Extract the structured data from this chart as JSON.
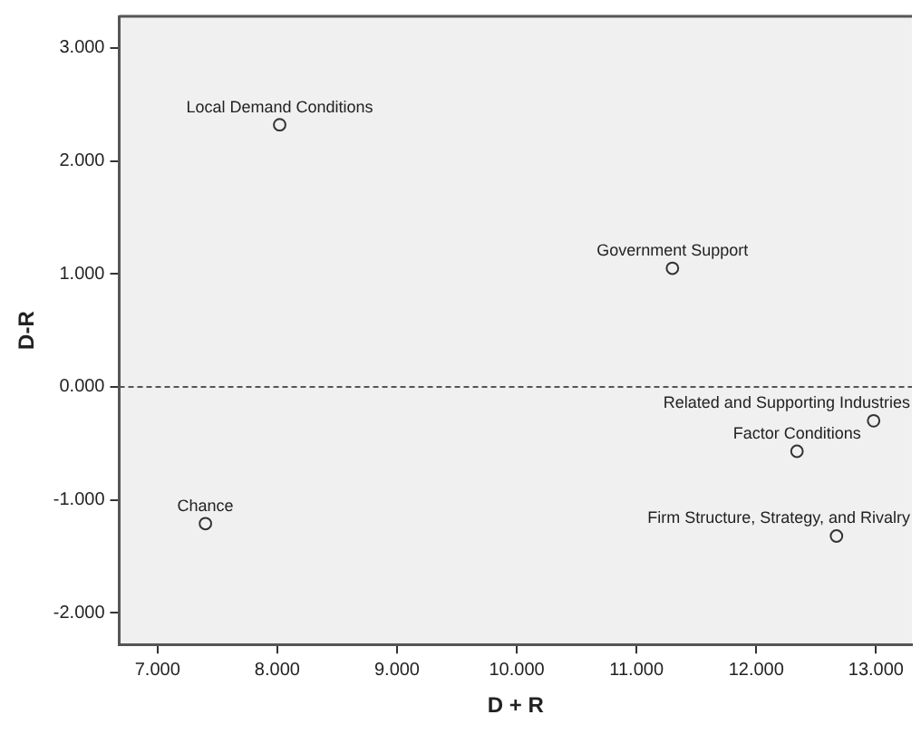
{
  "chart_data": {
    "type": "scatter",
    "xlabel": "D + R",
    "ylabel": "D-R",
    "x": [
      8.02,
      11.3,
      12.98,
      12.34,
      12.67,
      7.4
    ],
    "series": [
      {
        "color": "#333333",
        "values": [
          2.32,
          1.05,
          -0.3,
          -0.57,
          -1.32,
          -1.21
        ]
      }
    ],
    "marker": "circle",
    "grid": false,
    "legend": false,
    "xlim": [
      6.68,
      13.3
    ],
    "ylim": [
      -2.28,
      3.28
    ],
    "xticks": [
      {
        "value": 7,
        "label": "7.000"
      },
      {
        "value": 8,
        "label": "8.000"
      },
      {
        "value": 9,
        "label": "9.000"
      },
      {
        "value": 10,
        "label": "10.000"
      },
      {
        "value": 11,
        "label": "11.000"
      },
      {
        "value": 12,
        "label": "12.000"
      },
      {
        "value": 13,
        "label": "13.000"
      }
    ],
    "yticks": [
      {
        "value": -2,
        "label": "-2.000"
      },
      {
        "value": -1,
        "label": "-1.000"
      },
      {
        "value": 0,
        "label": "0.000"
      },
      {
        "value": 1,
        "label": "1.000"
      },
      {
        "value": 2,
        "label": "2.000"
      },
      {
        "value": 3,
        "label": "3.000"
      }
    ],
    "ref_lines": [
      {
        "axis": "y",
        "value": 0,
        "line_style": "dashed",
        "color": "#555555"
      }
    ],
    "annotations": [
      {
        "text": "Local Demand Conditions",
        "x": 8.02,
        "y": 2.32
      },
      {
        "text": "Government Support",
        "x": 11.3,
        "y": 1.05
      },
      {
        "text": "Related and Supporting Industries",
        "x": 12.98,
        "y": -0.3
      },
      {
        "text": "Factor Conditions",
        "x": 12.34,
        "y": -0.57
      },
      {
        "text": "Firm Structure, Strategy, and Rivalry",
        "x": 12.67,
        "y": -1.32
      },
      {
        "text": "Chance",
        "x": 7.4,
        "y": -1.21
      }
    ]
  }
}
